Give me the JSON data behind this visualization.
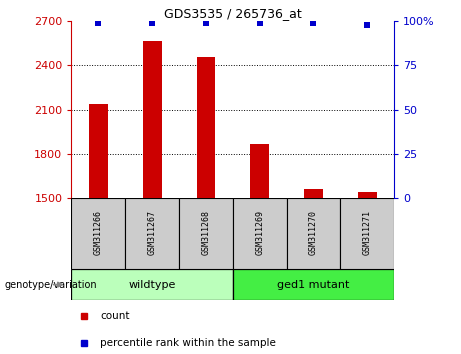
{
  "title": "GDS3535 / 265736_at",
  "samples": [
    "GSM311266",
    "GSM311267",
    "GSM311268",
    "GSM311269",
    "GSM311270",
    "GSM311271"
  ],
  "counts": [
    2140,
    2565,
    2460,
    1870,
    1560,
    1545
  ],
  "percentiles": [
    99,
    99,
    99,
    99,
    99,
    98
  ],
  "ylim_left": [
    1500,
    2700
  ],
  "ylim_right": [
    0,
    100
  ],
  "yticks_left": [
    1500,
    1800,
    2100,
    2400,
    2700
  ],
  "yticks_right": [
    0,
    25,
    50,
    75,
    100
  ],
  "grid_values": [
    1800,
    2100,
    2400
  ],
  "bar_color": "#cc0000",
  "dot_color": "#0000cc",
  "wildtype_label": "wildtype",
  "mutant_label": "ged1 mutant",
  "wildtype_color": "#bbffbb",
  "mutant_color": "#44ee44",
  "sample_bg_color": "#cccccc",
  "legend_count_label": "count",
  "legend_percentile_label": "percentile rank within the sample",
  "genotype_label": "genotype/variation"
}
